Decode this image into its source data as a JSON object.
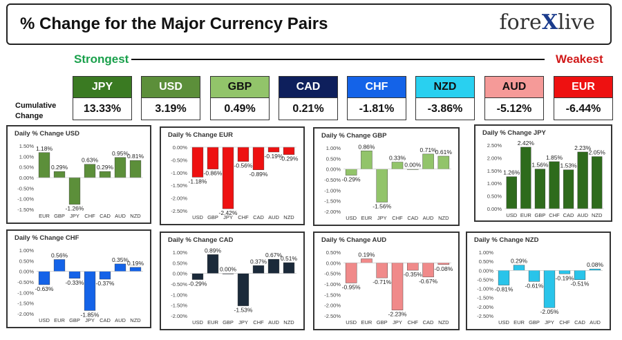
{
  "header": {
    "title": "% Change for the Major Currency Pairs",
    "logo_text_1": "fore",
    "logo_text_x": "X",
    "logo_text_2": "live"
  },
  "scale": {
    "strongest": "Strongest",
    "weakest": "Weakest"
  },
  "cumulative_label": "Cumulative Change",
  "currencies": [
    {
      "code": "JPY",
      "value": "13.33%",
      "bg": "#3a7a22",
      "fg": "#ffffff"
    },
    {
      "code": "USD",
      "value": "3.19%",
      "bg": "#5c8f3a",
      "fg": "#ffffff"
    },
    {
      "code": "GBP",
      "value": "0.49%",
      "bg": "#92c46a",
      "fg": "#111111"
    },
    {
      "code": "CAD",
      "value": "0.21%",
      "bg": "#0e1f5c",
      "fg": "#ffffff"
    },
    {
      "code": "CHF",
      "value": "-1.81%",
      "bg": "#1463e8",
      "fg": "#ffffff"
    },
    {
      "code": "NZD",
      "value": "-3.86%",
      "bg": "#29d0f0",
      "fg": "#111111"
    },
    {
      "code": "AUD",
      "value": "-5.12%",
      "bg": "#f59a98",
      "fg": "#111111"
    },
    {
      "code": "EUR",
      "value": "-6.44%",
      "bg": "#ee1111",
      "fg": "#ffffff"
    }
  ],
  "chart_data": [
    {
      "type": "bar",
      "title": "Daily % Change USD",
      "categories": [
        "EUR",
        "GBP",
        "JPY",
        "CHF",
        "CAD",
        "AUD",
        "NZD"
      ],
      "values": [
        1.18,
        0.29,
        -1.26,
        0.63,
        0.29,
        0.95,
        0.81
      ],
      "labels": [
        "1.18%",
        "0.29%",
        "-1.26%",
        "0.63%",
        "0.29%",
        "0.95%",
        "0.81%"
      ],
      "ylim": [
        -1.5,
        1.5
      ],
      "ticks": [
        1.5,
        1.0,
        0.5,
        0.0,
        -0.5,
        -1.0,
        -1.5
      ],
      "tick_labels": [
        "1.50%",
        "1.00%",
        "0.50%",
        "0.00%",
        "-0.50%",
        "-1.00%",
        "-1.50%"
      ],
      "colors": [
        "#5c8f3a"
      ]
    },
    {
      "type": "bar",
      "title": "Daily % Change EUR",
      "categories": [
        "USD",
        "GBP",
        "JPY",
        "CHF",
        "CAD",
        "AUD",
        "NZD"
      ],
      "values": [
        -1.18,
        -0.86,
        -2.42,
        -0.56,
        -0.89,
        -0.19,
        -0.29
      ],
      "labels": [
        "-1.18%",
        "-0.86%",
        "-2.42%",
        "-0.56%",
        "-0.89%",
        "-0.19%",
        "-0.29%"
      ],
      "ylim": [
        -2.5,
        0
      ],
      "ticks": [
        0.0,
        -0.5,
        -1.0,
        -1.5,
        -2.0,
        -2.5
      ],
      "tick_labels": [
        "0.00%",
        "-0.50%",
        "-1.00%",
        "-1.50%",
        "-2.00%",
        "-2.50%"
      ],
      "colors": [
        "#ee1111"
      ]
    },
    {
      "type": "bar",
      "title": "Daily % Change GBP",
      "categories": [
        "USD",
        "EUR",
        "JPY",
        "CHF",
        "CAD",
        "AUD",
        "NZD"
      ],
      "values": [
        -0.29,
        0.86,
        -1.56,
        0.33,
        0.0,
        0.71,
        0.61
      ],
      "labels": [
        "-0.29%",
        "0.86%",
        "-1.56%",
        "0.33%",
        "0.00%",
        "0.71%",
        "0.61%"
      ],
      "ylim": [
        -2.0,
        1.0
      ],
      "ticks": [
        1.0,
        0.5,
        0.0,
        -0.5,
        -1.0,
        -1.5,
        -2.0
      ],
      "tick_labels": [
        "1.00%",
        "0.50%",
        "0.00%",
        "-0.50%",
        "-1.00%",
        "-1.50%",
        "-2.00%"
      ],
      "colors": [
        "#92c46a"
      ]
    },
    {
      "type": "bar",
      "title": "Daily % Change JPY",
      "categories": [
        "USD",
        "EUR",
        "GBP",
        "CHF",
        "CAD",
        "AUD",
        "NZD"
      ],
      "values": [
        1.26,
        2.42,
        1.56,
        1.85,
        1.53,
        2.23,
        2.05
      ],
      "labels": [
        "1.26%",
        "2.42%",
        "1.56%",
        "1.85%",
        "1.53%",
        "2.23%",
        "2.05%"
      ],
      "ylim": [
        0,
        2.5
      ],
      "ticks": [
        2.5,
        2.0,
        1.5,
        1.0,
        0.5,
        0.0
      ],
      "tick_labels": [
        "2.50%",
        "2.00%",
        "1.50%",
        "1.00%",
        "0.50%",
        "0.00%"
      ],
      "colors": [
        "#2e6b1c"
      ]
    },
    {
      "type": "bar",
      "title": "Daily % Change CHF",
      "categories": [
        "USD",
        "EUR",
        "GBP",
        "JPY",
        "CAD",
        "AUD",
        "NZD"
      ],
      "values": [
        -0.63,
        0.56,
        -0.33,
        -1.85,
        -0.37,
        0.35,
        0.19
      ],
      "labels": [
        "-0.63%",
        "0.56%",
        "-0.33%",
        "-1.85%",
        "-0.37%",
        "0.35%",
        "0.19%"
      ],
      "ylim": [
        -2.0,
        1.0
      ],
      "ticks": [
        1.0,
        0.5,
        0.0,
        -0.5,
        -1.0,
        -1.5,
        -2.0
      ],
      "tick_labels": [
        "1.00%",
        "0.50%",
        "0.00%",
        "-0.50%",
        "-1.00%",
        "-1.50%",
        "-2.00%"
      ],
      "colors": [
        "#1463e8"
      ]
    },
    {
      "type": "bar",
      "title": "Daily % Change CAD",
      "categories": [
        "USD",
        "EUR",
        "GBP",
        "JPY",
        "CHF",
        "AUD",
        "NZD"
      ],
      "values": [
        -0.29,
        0.89,
        0.0,
        -1.53,
        0.37,
        0.67,
        0.51
      ],
      "labels": [
        "-0.29%",
        "0.89%",
        "0.00%",
        "-1.53%",
        "0.37%",
        "0.67%",
        "0.51%"
      ],
      "ylim": [
        -2.0,
        1.0
      ],
      "ticks": [
        1.0,
        0.5,
        0.0,
        -0.5,
        -1.0,
        -1.5,
        -2.0
      ],
      "tick_labels": [
        "1.00%",
        "0.50%",
        "0.00%",
        "-0.50%",
        "-1.00%",
        "-1.50%",
        "-2.00%"
      ],
      "colors": [
        "#1b2a3a"
      ]
    },
    {
      "type": "bar",
      "title": "Daily % Change AUD",
      "categories": [
        "USD",
        "EUR",
        "GBP",
        "JPY",
        "CHF",
        "CAD",
        "NZD"
      ],
      "values": [
        -0.95,
        0.19,
        -0.71,
        -2.23,
        -0.35,
        -0.67,
        -0.08
      ],
      "labels": [
        "-0.95%",
        "0.19%",
        "-0.71%",
        "-2.23%",
        "-0.35%",
        "-0.67%",
        "-0.08%"
      ],
      "ylim": [
        -2.5,
        0.5
      ],
      "ticks": [
        0.5,
        0.0,
        -0.5,
        -1.0,
        -1.5,
        -2.0,
        -2.5
      ],
      "tick_labels": [
        "0.50%",
        "0.00%",
        "-0.50%",
        "-1.00%",
        "-1.50%",
        "-2.00%",
        "-2.50%"
      ],
      "colors": [
        "#f08a8a"
      ]
    },
    {
      "type": "bar",
      "title": "Daily % Change NZD",
      "categories": [
        "USD",
        "EUR",
        "GBP",
        "JPY",
        "CHF",
        "CAD",
        "AUD"
      ],
      "values": [
        -0.81,
        0.29,
        -0.61,
        -2.05,
        -0.19,
        -0.51,
        0.08
      ],
      "labels": [
        "-0.81%",
        "0.29%",
        "-0.61%",
        "-2.05%",
        "-0.19%",
        "-0.51%",
        "0.08%"
      ],
      "ylim": [
        -2.5,
        1.0
      ],
      "ticks": [
        1.0,
        0.5,
        0.0,
        -0.5,
        -1.0,
        -1.5,
        -2.0,
        -2.5
      ],
      "tick_labels": [
        "1.00%",
        "0.50%",
        "0.00%",
        "-0.50%",
        "-1.00%",
        "-1.50%",
        "-2.00%",
        "-2.50%"
      ],
      "colors": [
        "#29c4ea"
      ]
    }
  ]
}
